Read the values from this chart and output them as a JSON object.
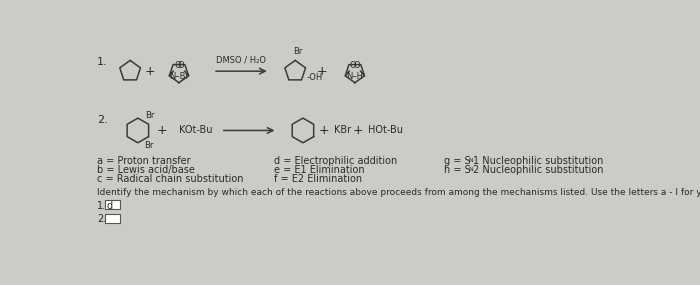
{
  "background_color": "#cccbc6",
  "text_color": "#2a2a2a",
  "fig_width": 7.0,
  "fig_height": 2.85,
  "mechanisms_left": [
    "a = Proton transfer",
    "b = Lewis acid/base",
    "c = Radical chain substitution"
  ],
  "mechanisms_mid": [
    "d = Electrophilic addition",
    "e = E1 Elimination",
    "f = E2 Elimination"
  ],
  "identify_text": "Identify the mechanism by which each of the reactions above proceeds from among the mechanisms listed. Use the letters a - l for your answers.",
  "row1_label": "1.",
  "row2_label": "2.",
  "dmso": "DMSO / H₂O",
  "kbr": "KBr",
  "kOtBu": "KOt-Bu",
  "hOtBu": "HOt-Bu",
  "OH": "-OH",
  "Br": "Br"
}
